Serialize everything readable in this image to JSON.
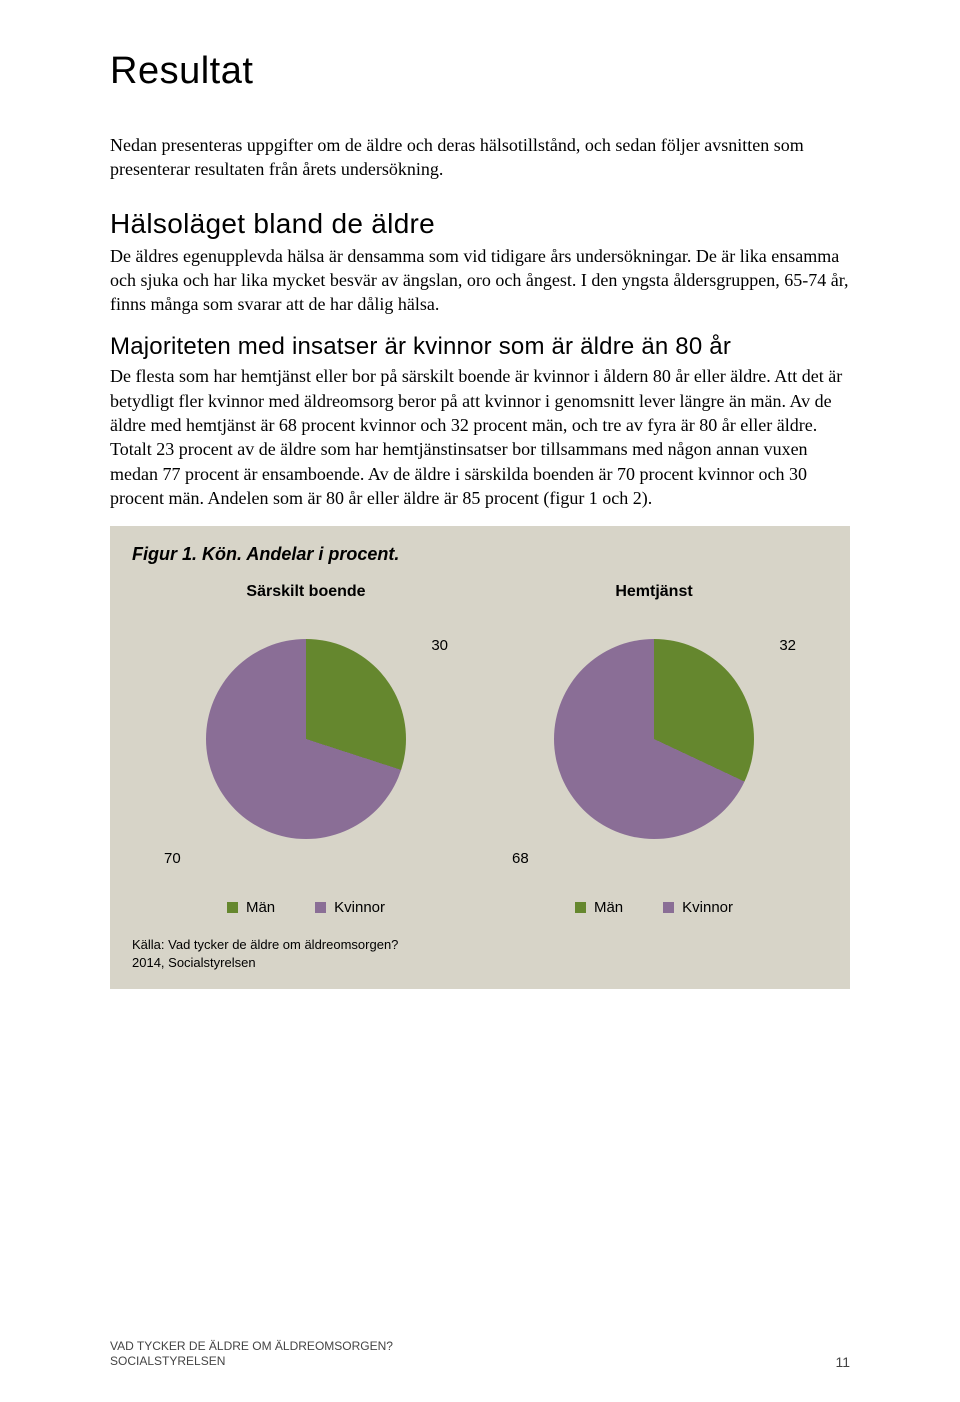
{
  "page": {
    "title": "Resultat",
    "intro": "Nedan presenteras uppgifter om de äldre och deras hälsotillstånd, och sedan följer avsnitten som presenterar resultaten från årets undersökning.",
    "h2": "Hälsoläget bland de äldre",
    "body1": "De äldres egenupplevda hälsa är densamma som vid tidigare års undersökningar. De är lika ensamma och sjuka och har lika mycket besvär av ängslan, oro och ångest. I den yngsta åldersgruppen, 65-74 år, finns många som svarar att de har dålig hälsa.",
    "h3": "Majoriteten med insatser är kvinnor som är äldre än 80 år",
    "body2": "De flesta som har hemtjänst eller bor på särskilt boende är kvinnor i åldern 80 år eller äldre. Att det är betydligt fler kvinnor med äldreomsorg beror på att kvinnor i genomsnitt lever längre än män. Av de äldre med hemtjänst är 68 procent kvinnor och 32 procent män, och tre av fyra är 80 år eller äldre. Totalt 23 procent av de äldre som har hemtjänstinsatser bor tillsammans med någon annan vuxen medan 77 procent är ensamboende. Av de äldre i särskilda boenden är 70 procent kvinnor och 30 procent män. Andelen som är 80 år eller äldre är 85 procent (figur 1 och 2)."
  },
  "figure": {
    "title": "Figur 1. Kön. Andelar i procent.",
    "background_color": "#d7d4c8",
    "charts": [
      {
        "label": "Särskilt boende",
        "type": "pie",
        "slices": [
          {
            "name": "Män",
            "value": 30,
            "color": "#65872e"
          },
          {
            "name": "Kvinnor",
            "value": 70,
            "color": "#8a6e96"
          }
        ]
      },
      {
        "label": "Hemtjänst",
        "type": "pie",
        "slices": [
          {
            "name": "Män",
            "value": 32,
            "color": "#65872e"
          },
          {
            "name": "Kvinnor",
            "value": 68,
            "color": "#8a6e96"
          }
        ]
      }
    ],
    "legend": [
      {
        "label": "Män",
        "color": "#65872e"
      },
      {
        "label": "Kvinnor",
        "color": "#8a6e96"
      }
    ],
    "source_line1": "Källa: Vad tycker de äldre om äldreomsorgen?",
    "source_line2": "2014, Socialstyrelsen"
  },
  "footer": {
    "line1": "VAD TYCKER DE ÄLDRE OM ÄLDREOMSORGEN?",
    "line2": "SOCIALSTYRELSEN",
    "page_number": "11"
  }
}
